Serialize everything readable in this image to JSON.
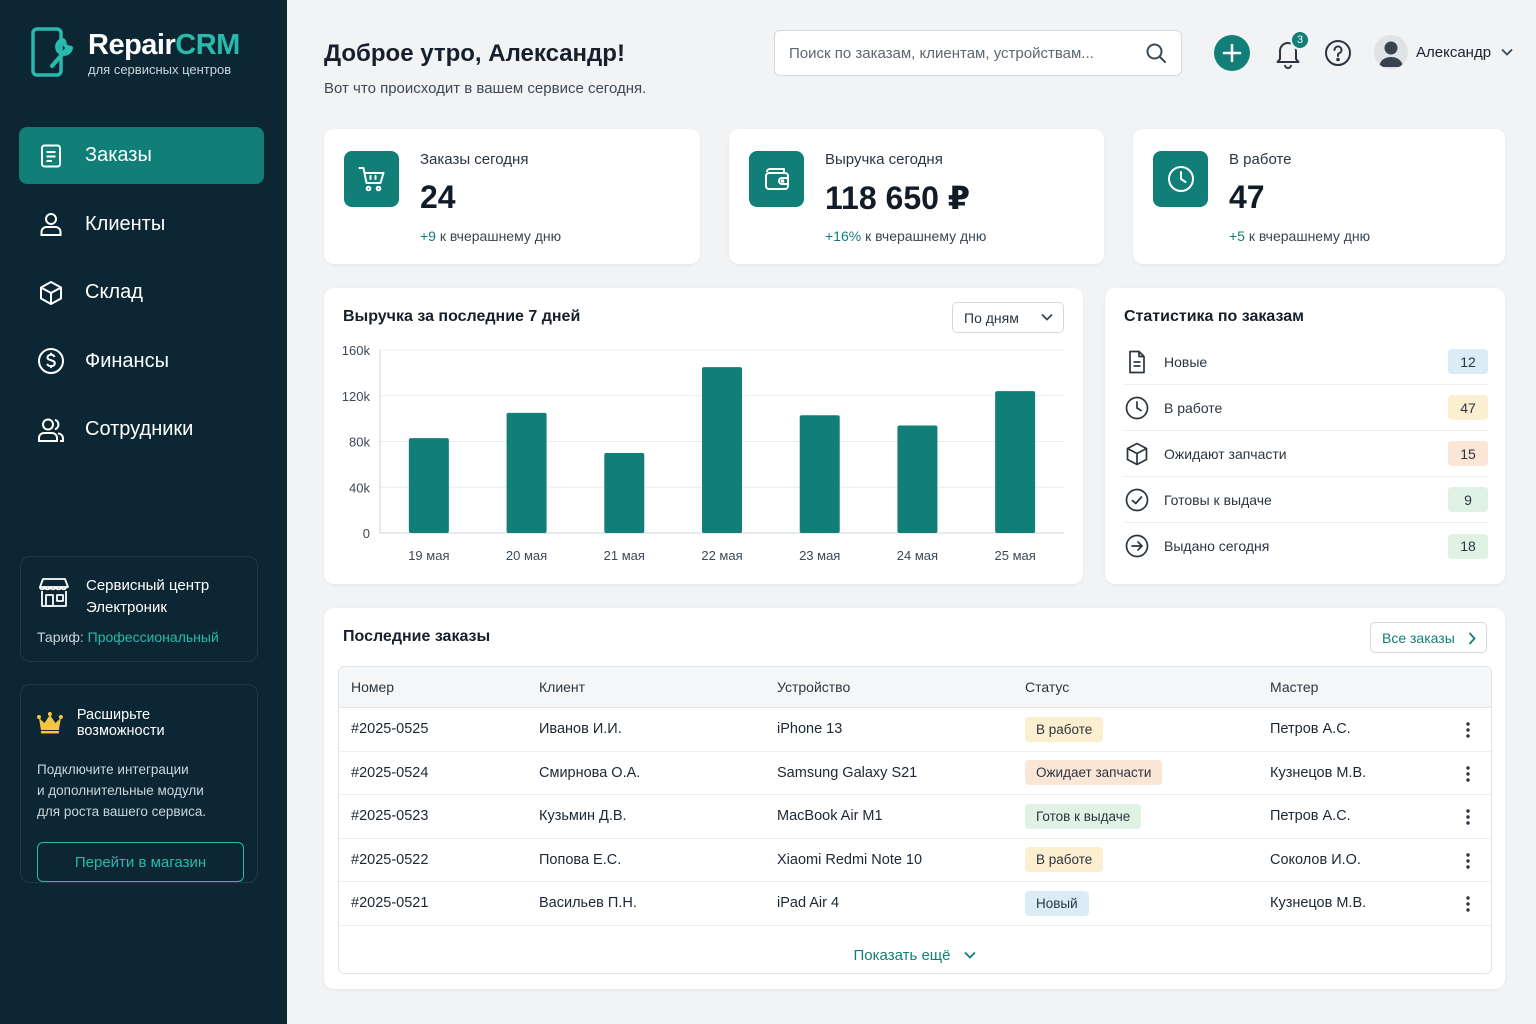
{
  "brand": {
    "name_part1": "Repair",
    "name_part2": "CRM",
    "tagline": "для сервисных центров"
  },
  "nav": [
    {
      "label": "Заказы",
      "icon": "orders-icon",
      "active": true
    },
    {
      "label": "Клиенты",
      "icon": "user-icon"
    },
    {
      "label": "Склад",
      "icon": "box-icon"
    },
    {
      "label": "Финансы",
      "icon": "dollar-icon"
    },
    {
      "label": "Сотрудники",
      "icon": "users-icon"
    }
  ],
  "org": {
    "name": "Сервисный центр\nЭлектроник",
    "plan_label": "Тариф:",
    "plan": "Профессиональный"
  },
  "promo": {
    "title": "Расширьте возможности",
    "text": "Подключите интеграции\nи дополнительные модули\nдля роста вашего сервиса.",
    "button": "Перейти в магазин"
  },
  "header": {
    "greeting": "Доброе утро, Александр!",
    "subtitle": "Вот что происходит в вашем сервисе сегодня.",
    "search_placeholder": "Поиск по заказам, клиентам, устройствам...",
    "notifications": "3",
    "user": "Александр"
  },
  "kpis": [
    {
      "label": "Заказы сегодня",
      "value": "24",
      "delta": "+9",
      "delta_text": " к вчерашнему дню",
      "icon": "cart-icon"
    },
    {
      "label": "Выручка сегодня",
      "value": "118 650 ₽",
      "delta": "+16%",
      "delta_text": " к вчерашнему дню",
      "icon": "wallet-icon"
    },
    {
      "label": "В работе",
      "value": "47",
      "delta": "+5",
      "delta_text": " к вчерашнему дню",
      "icon": "clock-icon"
    }
  ],
  "revenue": {
    "title": "Выручка за последние 7 дней",
    "period": "По дням"
  },
  "chart_data": {
    "type": "bar",
    "categories": [
      "19 мая",
      "20 мая",
      "21 мая",
      "22 мая",
      "23 мая",
      "24 мая",
      "25 мая"
    ],
    "values": [
      83000,
      105000,
      70000,
      145000,
      103000,
      94000,
      124000
    ],
    "yticks": [
      "0",
      "40k",
      "80k",
      "120k",
      "160k"
    ],
    "ylim": [
      0,
      160000
    ],
    "grid": true,
    "color": "#127e78"
  },
  "stats": {
    "title": "Статистика по заказам",
    "items": [
      {
        "label": "Новые",
        "count": "12",
        "color": "#dcecf6",
        "icon": "doc-icon"
      },
      {
        "label": "В работе",
        "count": "47",
        "color": "#fbefcf",
        "icon": "clock-icon"
      },
      {
        "label": "Ожидают запчасти",
        "count": "15",
        "color": "#fbe6d6",
        "icon": "box-icon"
      },
      {
        "label": "Готовы к выдаче",
        "count": "9",
        "color": "#dff2e3",
        "icon": "check-circle-icon"
      },
      {
        "label": "Выдано сегодня",
        "count": "18",
        "color": "#dff2e3",
        "icon": "arrow-circle-icon"
      }
    ]
  },
  "orders": {
    "title": "Последние заказы",
    "all_button": "Все заказы",
    "show_more": "Показать ещё",
    "columns": [
      "Номер",
      "Клиент",
      "Устройство",
      "Статус",
      "Мастер"
    ],
    "rows": [
      {
        "number": "#2025-0525",
        "client": "Иванов И.И.",
        "device": "iPhone 13",
        "status": "В работе",
        "status_color": "#fbefcf",
        "master": "Петров А.С."
      },
      {
        "number": "#2025-0524",
        "client": "Смирнова О.А.",
        "device": "Samsung Galaxy S21",
        "status": "Ожидает запчасти",
        "status_color": "#fbe6d6",
        "master": "Кузнецов М.В."
      },
      {
        "number": "#2025-0523",
        "client": "Кузьмин Д.В.",
        "device": "MacBook Air M1",
        "status": "Готов к выдаче",
        "status_color": "#dff2e3",
        "master": "Петров А.С."
      },
      {
        "number": "#2025-0522",
        "client": "Попова Е.С.",
        "device": "Xiaomi Redmi Note 10",
        "status": "В работе",
        "status_color": "#fbefcf",
        "master": "Соколов И.О."
      },
      {
        "number": "#2025-0521",
        "client": "Васильев П.Н.",
        "device": "iPad Air 4",
        "status": "Новый",
        "status_color": "#dcecf6",
        "master": "Кузнецов М.В."
      }
    ]
  }
}
